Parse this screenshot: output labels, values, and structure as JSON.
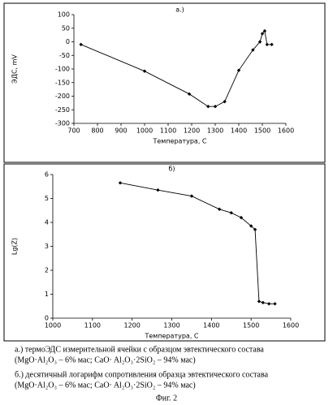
{
  "chart_data": [
    {
      "type": "line",
      "title": "а.)",
      "ylabel": "ЭДС, mV",
      "xlabel": "Температура, C",
      "color": "#000000",
      "x": [
        730,
        1000,
        1190,
        1270,
        1300,
        1340,
        1400,
        1460,
        1490,
        1500,
        1510,
        1520,
        1540
      ],
      "values": [
        -10,
        -108,
        -192,
        -238,
        -238,
        -220,
        -105,
        -30,
        0,
        30,
        40,
        -10,
        -10
      ],
      "xlim": [
        700,
        1600
      ],
      "xticks": [
        700,
        800,
        900,
        1000,
        1100,
        1200,
        1300,
        1400,
        1500,
        1600
      ],
      "ylim": [
        -300,
        100
      ],
      "yticks": [
        -300,
        -250,
        -200,
        -150,
        -100,
        -50,
        0,
        50,
        100
      ]
    },
    {
      "type": "line",
      "title": "б)",
      "ylabel": "Lg(Z)",
      "xlabel": "Температура, C",
      "color": "#000000",
      "x": [
        1170,
        1265,
        1350,
        1420,
        1450,
        1475,
        1500,
        1510,
        1520,
        1530,
        1545,
        1560
      ],
      "values": [
        5.65,
        5.35,
        5.1,
        4.55,
        4.4,
        4.2,
        3.85,
        3.7,
        0.7,
        0.65,
        0.6,
        0.6
      ],
      "xlim": [
        1000,
        1600
      ],
      "xticks": [
        1000,
        1100,
        1200,
        1300,
        1400,
        1500,
        1600
      ],
      "ylim": [
        0,
        6
      ],
      "yticks": [
        0,
        1,
        2,
        3,
        4,
        5,
        6
      ]
    }
  ],
  "captions": [
    "а.) термоЭДС измерительной ячейки с образцом эвтектического состава",
    "(MgO·Al₂O₃ – 6% мас; CaO· Al₂O₃·2SiO₂ – 94% мас)",
    "б.) десятичный логарифм сопротивления образца эвтектического состава",
    "(MgO·Al₂O₃ – 6% мас; CaO· Al₂O₃·2SiO₂ – 94% мас)"
  ],
  "figure_label": "Фиг. 2"
}
